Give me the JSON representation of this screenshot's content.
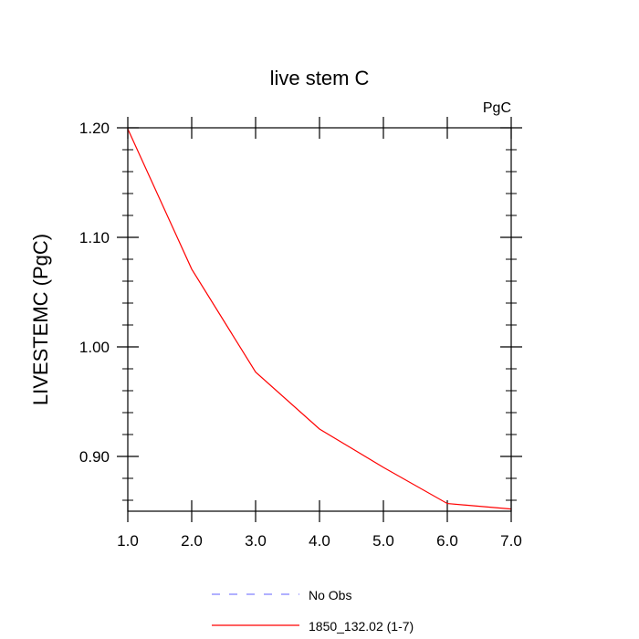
{
  "chart_data": {
    "type": "line",
    "title": "live stem C",
    "units_label": "PgC",
    "ylabel": "LIVESTEMC  (PgC)",
    "xlabel": "",
    "xlim": [
      1.0,
      7.0
    ],
    "ylim": [
      0.85,
      1.2
    ],
    "xticks": [
      1.0,
      2.0,
      3.0,
      4.0,
      5.0,
      6.0,
      7.0
    ],
    "xtick_labels": [
      "1.0",
      "2.0",
      "3.0",
      "4.0",
      "5.0",
      "6.0",
      "7.0"
    ],
    "yticks": [
      0.9,
      1.0,
      1.1,
      1.2
    ],
    "ytick_labels": [
      "0.90",
      "1.00",
      "1.10",
      "1.20"
    ],
    "grid": false,
    "legend_position": "bottom",
    "series": [
      {
        "name": "1850_132.02 (1-7)",
        "color": "#ff0000",
        "dash": "solid",
        "x": [
          1,
          2,
          3,
          4,
          5,
          6,
          7
        ],
        "y": [
          1.199,
          1.071,
          0.977,
          0.925,
          0.89,
          0.857,
          0.852
        ]
      }
    ],
    "legend": [
      {
        "label": "No Obs",
        "color": "#8080ff",
        "dash": "dashed"
      },
      {
        "label": "1850_132.02 (1-7)",
        "color": "#ff0000",
        "dash": "solid"
      }
    ]
  }
}
